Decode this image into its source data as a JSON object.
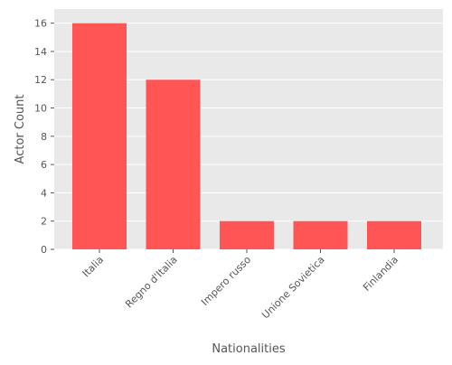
{
  "chart_data": {
    "type": "bar",
    "title": "",
    "xlabel": "Nationalities",
    "ylabel": "Actor Count",
    "categories": [
      "Italia",
      "Regno d'Italia",
      "Impero russo",
      "Unione Sovietica",
      "Finlandia"
    ],
    "values": [
      16,
      12,
      2,
      2,
      2
    ],
    "ylim": [
      0,
      17
    ],
    "yticks": [
      0,
      2,
      4,
      6,
      8,
      10,
      12,
      14,
      16
    ],
    "grid": true,
    "legend": "none"
  },
  "colors": {
    "bar": "#ff5555",
    "plot_background": "#e9e9e9",
    "grid": "#ffffff",
    "text": "#555555"
  }
}
